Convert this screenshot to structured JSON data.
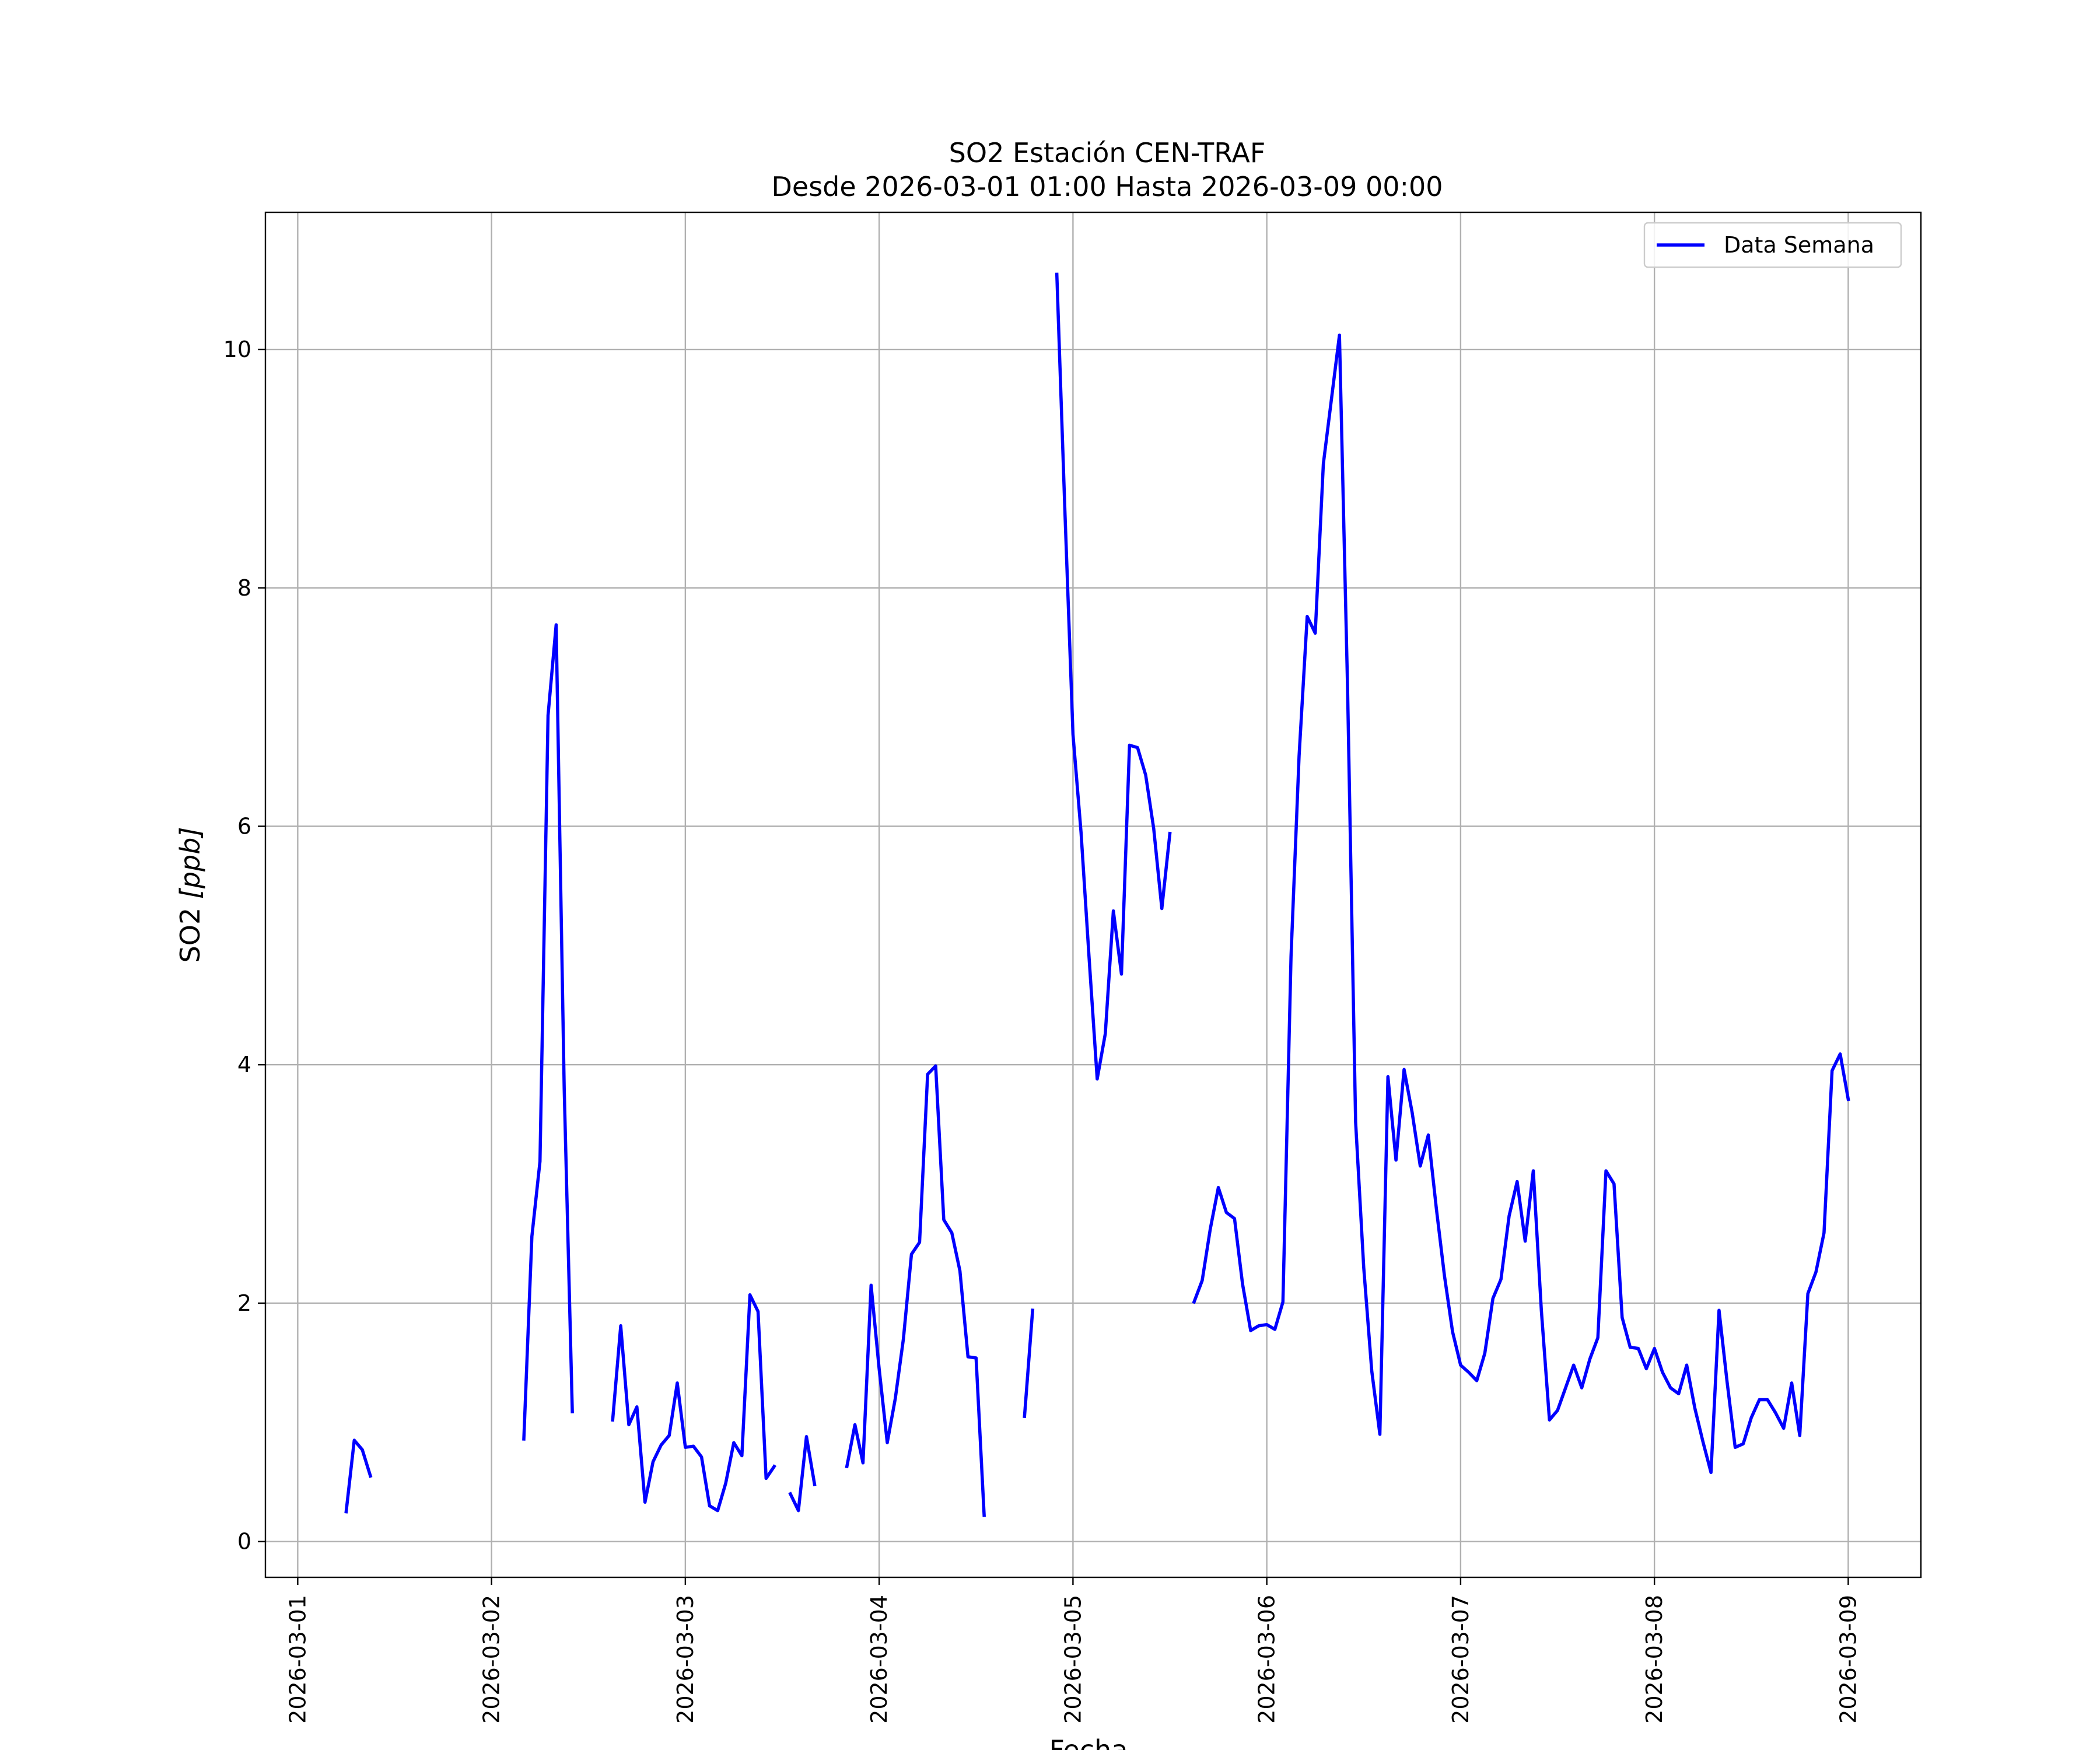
{
  "chart_data": {
    "type": "line",
    "title": "SO2 Estación CEN-TRAF",
    "subtitle": "Desde 2026-03-01 01:00 Hasta 2026-03-09 00:00",
    "xlabel": "Fecha",
    "ylabel": "SO2 [ppb]",
    "ylabel_main": "SO2 ",
    "ylabel_unit": "[ppb]",
    "xlim": [
      "2026-02-28 20:00",
      "2026-03-09 09:00"
    ],
    "ylim": [
      -0.3,
      11.15
    ],
    "grid": true,
    "legend_position": "top-right",
    "x_ticks": [
      "2026-03-01",
      "2026-03-02",
      "2026-03-03",
      "2026-03-04",
      "2026-03-05",
      "2026-03-06",
      "2026-03-07",
      "2026-03-08",
      "2026-03-09"
    ],
    "y_ticks": [
      0,
      2,
      4,
      6,
      8,
      10
    ],
    "y_tick_labels": [
      "0",
      "2",
      "4",
      "6",
      "8",
      "10"
    ],
    "series": [
      {
        "name": "Data Semana",
        "color": "#0000ff",
        "segments": [
          [
            [
              "2026-03-01 06:00",
              0.25
            ],
            [
              "2026-03-01 07:00",
              0.85
            ],
            [
              "2026-03-01 08:00",
              0.77
            ],
            [
              "2026-03-01 09:00",
              0.55
            ]
          ],
          [
            [
              "2026-03-02 04:00",
              0.86
            ],
            [
              "2026-03-02 05:00",
              2.56
            ],
            [
              "2026-03-02 06:00",
              3.19
            ],
            [
              "2026-03-02 07:00",
              6.93
            ],
            [
              "2026-03-02 08:00",
              7.69
            ],
            [
              "2026-03-02 09:00",
              3.8
            ],
            [
              "2026-03-02 10:00",
              1.09
            ]
          ],
          [
            [
              "2026-03-02 15:00",
              1.02
            ],
            [
              "2026-03-02 16:00",
              1.81
            ],
            [
              "2026-03-02 17:00",
              0.98
            ],
            [
              "2026-03-02 18:00",
              1.13
            ],
            [
              "2026-03-02 19:00",
              0.33
            ],
            [
              "2026-03-02 20:00",
              0.67
            ],
            [
              "2026-03-02 21:00",
              0.81
            ],
            [
              "2026-03-02 22:00",
              0.89
            ],
            [
              "2026-03-02 23:00",
              1.33
            ],
            [
              "2026-03-03 00:00",
              0.79
            ],
            [
              "2026-03-03 01:00",
              0.8
            ],
            [
              "2026-03-03 02:00",
              0.71
            ],
            [
              "2026-03-03 03:00",
              0.3
            ],
            [
              "2026-03-03 04:00",
              0.26
            ],
            [
              "2026-03-03 05:00",
              0.49
            ],
            [
              "2026-03-03 06:00",
              0.83
            ],
            [
              "2026-03-03 07:00",
              0.72
            ],
            [
              "2026-03-03 08:00",
              2.07
            ],
            [
              "2026-03-03 09:00",
              1.93
            ],
            [
              "2026-03-03 10:00",
              0.53
            ],
            [
              "2026-03-03 11:00",
              0.63
            ]
          ],
          [
            [
              "2026-03-03 13:00",
              0.4
            ],
            [
              "2026-03-03 14:00",
              0.26
            ],
            [
              "2026-03-03 15:00",
              0.88
            ],
            [
              "2026-03-03 16:00",
              0.48
            ]
          ],
          [
            [
              "2026-03-03 20:00",
              0.63
            ],
            [
              "2026-03-03 21:00",
              0.98
            ],
            [
              "2026-03-03 22:00",
              0.66
            ],
            [
              "2026-03-03 23:00",
              2.15
            ],
            [
              "2026-03-04 00:00",
              1.45
            ],
            [
              "2026-03-04 01:00",
              0.83
            ],
            [
              "2026-03-04 02:00",
              1.2
            ],
            [
              "2026-03-04 03:00",
              1.7
            ],
            [
              "2026-03-04 04:00",
              2.41
            ],
            [
              "2026-03-04 05:00",
              2.51
            ],
            [
              "2026-03-04 06:00",
              3.92
            ],
            [
              "2026-03-04 07:00",
              3.99
            ],
            [
              "2026-03-04 08:00",
              2.7
            ],
            [
              "2026-03-04 09:00",
              2.59
            ],
            [
              "2026-03-04 10:00",
              2.27
            ],
            [
              "2026-03-04 11:00",
              1.55
            ],
            [
              "2026-03-04 12:00",
              1.54
            ],
            [
              "2026-03-04 13:00",
              0.22
            ]
          ],
          [
            [
              "2026-03-04 18:00",
              1.05
            ],
            [
              "2026-03-04 19:00",
              1.94
            ]
          ],
          [
            [
              "2026-03-04 22:00",
              10.63
            ],
            [
              "2026-03-04 23:00",
              8.65
            ],
            [
              "2026-03-05 00:00",
              6.77
            ],
            [
              "2026-03-05 01:00",
              5.95
            ],
            [
              "2026-03-05 02:00",
              4.89
            ],
            [
              "2026-03-05 03:00",
              3.88
            ],
            [
              "2026-03-05 04:00",
              4.26
            ],
            [
              "2026-03-05 05:00",
              5.29
            ],
            [
              "2026-03-05 06:00",
              4.76
            ],
            [
              "2026-03-05 07:00",
              6.68
            ],
            [
              "2026-03-05 08:00",
              6.66
            ],
            [
              "2026-03-05 09:00",
              6.43
            ],
            [
              "2026-03-05 10:00",
              5.98
            ],
            [
              "2026-03-05 11:00",
              5.31
            ],
            [
              "2026-03-05 12:00",
              5.94
            ]
          ],
          [
            [
              "2026-03-05 15:00",
              2.01
            ],
            [
              "2026-03-05 16:00",
              2.19
            ],
            [
              "2026-03-05 17:00",
              2.62
            ],
            [
              "2026-03-05 18:00",
              2.97
            ],
            [
              "2026-03-05 19:00",
              2.76
            ],
            [
              "2026-03-05 20:00",
              2.71
            ],
            [
              "2026-03-05 21:00",
              2.16
            ],
            [
              "2026-03-05 22:00",
              1.77
            ],
            [
              "2026-03-05 23:00",
              1.81
            ],
            [
              "2026-03-06 00:00",
              1.82
            ],
            [
              "2026-03-06 01:00",
              1.78
            ],
            [
              "2026-03-06 02:00",
              2.01
            ],
            [
              "2026-03-06 03:00",
              4.91
            ],
            [
              "2026-03-06 04:00",
              6.59
            ],
            [
              "2026-03-06 05:00",
              7.76
            ],
            [
              "2026-03-06 06:00",
              7.62
            ],
            [
              "2026-03-06 07:00",
              9.04
            ],
            [
              "2026-03-06 08:00",
              9.58
            ],
            [
              "2026-03-06 09:00",
              10.12
            ],
            [
              "2026-03-06 10:00",
              7.16
            ],
            [
              "2026-03-06 11:00",
              3.52
            ],
            [
              "2026-03-06 12:00",
              2.3
            ],
            [
              "2026-03-06 13:00",
              1.43
            ],
            [
              "2026-03-06 14:00",
              0.9
            ],
            [
              "2026-03-06 15:00",
              3.9
            ],
            [
              "2026-03-06 16:00",
              3.2
            ],
            [
              "2026-03-06 17:00",
              3.96
            ],
            [
              "2026-03-06 18:00",
              3.6
            ],
            [
              "2026-03-06 19:00",
              3.15
            ],
            [
              "2026-03-06 20:00",
              3.41
            ],
            [
              "2026-03-06 21:00",
              2.79
            ],
            [
              "2026-03-06 22:00",
              2.23
            ],
            [
              "2026-03-06 23:00",
              1.76
            ],
            [
              "2026-03-07 00:00",
              1.48
            ],
            [
              "2026-03-07 01:00",
              1.42
            ],
            [
              "2026-03-07 02:00",
              1.35
            ],
            [
              "2026-03-07 03:00",
              1.58
            ],
            [
              "2026-03-07 04:00",
              2.04
            ],
            [
              "2026-03-07 05:00",
              2.2
            ],
            [
              "2026-03-07 06:00",
              2.73
            ],
            [
              "2026-03-07 07:00",
              3.02
            ],
            [
              "2026-03-07 08:00",
              2.52
            ],
            [
              "2026-03-07 09:00",
              3.11
            ],
            [
              "2026-03-07 10:00",
              1.94
            ],
            [
              "2026-03-07 11:00",
              1.02
            ],
            [
              "2026-03-07 12:00",
              1.1
            ],
            [
              "2026-03-07 13:00",
              1.29
            ],
            [
              "2026-03-07 14:00",
              1.48
            ],
            [
              "2026-03-07 15:00",
              1.29
            ],
            [
              "2026-03-07 16:00",
              1.53
            ],
            [
              "2026-03-07 17:00",
              1.71
            ],
            [
              "2026-03-07 18:00",
              3.11
            ],
            [
              "2026-03-07 19:00",
              3.0
            ],
            [
              "2026-03-07 20:00",
              1.88
            ],
            [
              "2026-03-07 21:00",
              1.63
            ],
            [
              "2026-03-07 22:00",
              1.62
            ],
            [
              "2026-03-07 23:00",
              1.45
            ],
            [
              "2026-03-08 00:00",
              1.62
            ],
            [
              "2026-03-08 01:00",
              1.42
            ],
            [
              "2026-03-08 02:00",
              1.29
            ],
            [
              "2026-03-08 03:00",
              1.24
            ],
            [
              "2026-03-08 04:00",
              1.48
            ],
            [
              "2026-03-08 05:00",
              1.12
            ],
            [
              "2026-03-08 06:00",
              0.84
            ],
            [
              "2026-03-08 07:00",
              0.58
            ],
            [
              "2026-03-08 08:00",
              1.94
            ],
            [
              "2026-03-08 09:00",
              1.34
            ],
            [
              "2026-03-08 10:00",
              0.79
            ],
            [
              "2026-03-08 11:00",
              0.82
            ],
            [
              "2026-03-08 12:00",
              1.04
            ],
            [
              "2026-03-08 13:00",
              1.19
            ],
            [
              "2026-03-08 14:00",
              1.19
            ],
            [
              "2026-03-08 15:00",
              1.08
            ],
            [
              "2026-03-08 16:00",
              0.95
            ],
            [
              "2026-03-08 17:00",
              1.33
            ],
            [
              "2026-03-08 18:00",
              0.89
            ],
            [
              "2026-03-08 19:00",
              2.08
            ],
            [
              "2026-03-08 20:00",
              2.26
            ],
            [
              "2026-03-08 21:00",
              2.59
            ],
            [
              "2026-03-08 22:00",
              3.95
            ],
            [
              "2026-03-08 23:00",
              4.09
            ],
            [
              "2026-03-09 00:00",
              3.71
            ]
          ]
        ]
      }
    ]
  }
}
